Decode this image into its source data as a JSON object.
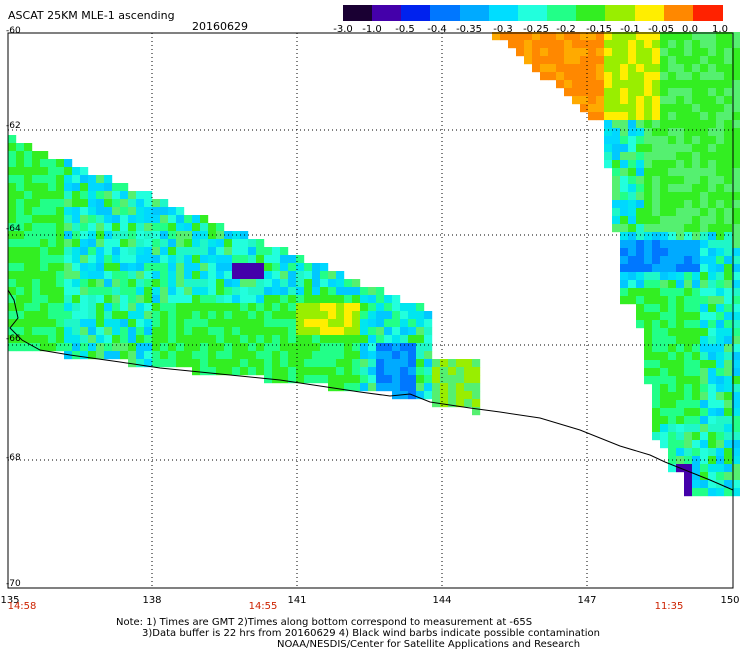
{
  "header": {
    "title": "ASCAT 25KM MLE-1 ascending",
    "date": "20160629"
  },
  "colorbar": {
    "labels": [
      "-3.0",
      "-1.0",
      "-0.5",
      "-0.4",
      "-0.35",
      "-0.3",
      "-0.25",
      "-0.2",
      "-0.15",
      "-0.1",
      "-0.05",
      "0.0",
      "1.0"
    ],
    "colors": [
      "#1a0033",
      "#4400aa",
      "#0022ee",
      "#0077ff",
      "#00aaff",
      "#00ddff",
      "#22ffdd",
      "#22ff88",
      "#33ee22",
      "#99ee00",
      "#ffee00",
      "#ff8800",
      "#ff2200"
    ]
  },
  "map": {
    "lat_labels": [
      "-60",
      "-62",
      "-64",
      "-66",
      "-68",
      "-70"
    ],
    "lon_labels": [
      "135",
      "138",
      "141",
      "144",
      "147",
      "150"
    ],
    "times": [
      "14:58",
      "14:55",
      "11:35"
    ]
  },
  "notes": {
    "line1": "Note: 1) Times are GMT 2)Times along bottom correspond to measurement at -65S",
    "line2": "3)Data buffer is 22 hrs from 20160629 4) Black wind barbs indicate possible contamination",
    "line3": "NOAA/NESDIS/Center for Satellite Applications and Research"
  }
}
